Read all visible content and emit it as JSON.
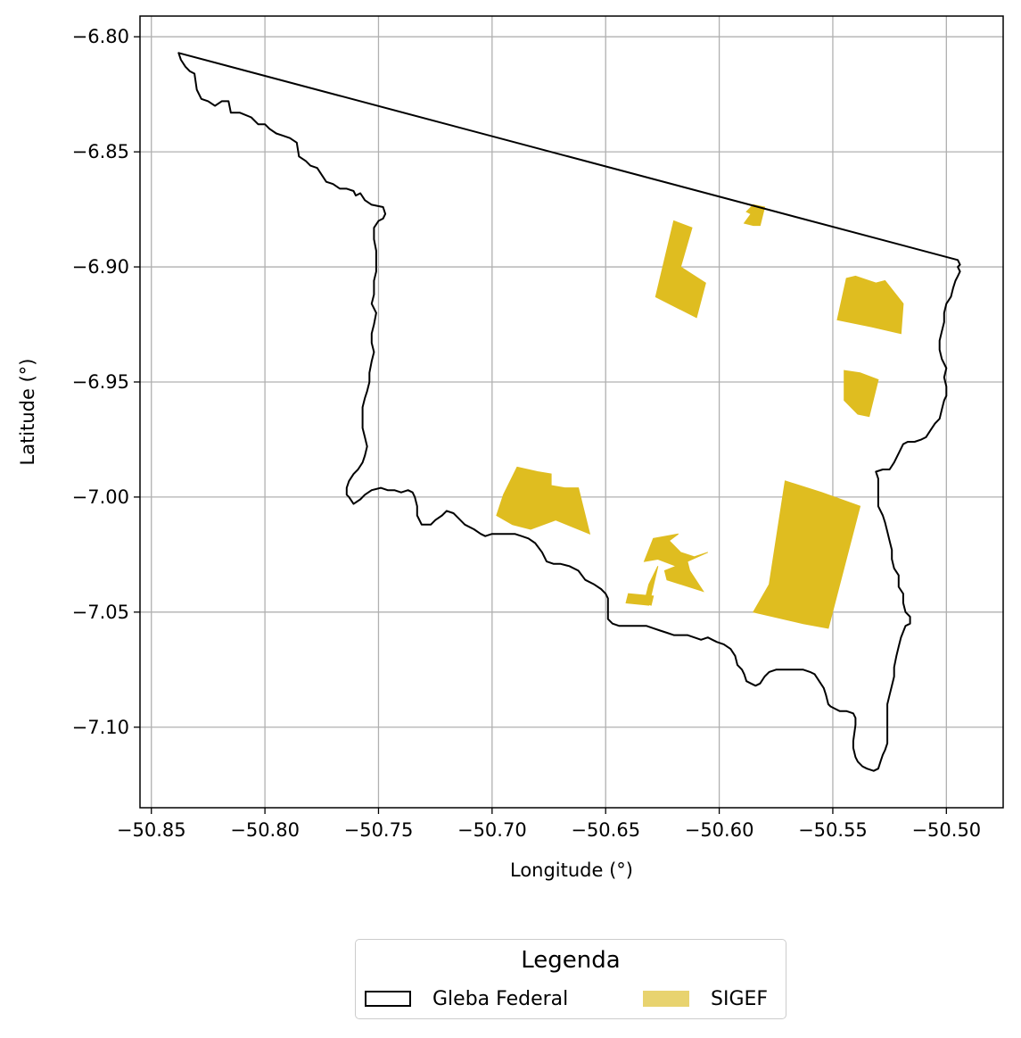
{
  "chart_data": {
    "type": "map",
    "xlabel": "Longitude (°)",
    "ylabel": "Latitude (°)",
    "xlim": [
      -50.855,
      -50.475
    ],
    "ylim": [
      -7.135,
      -6.791
    ],
    "x_ticks": [
      -50.85,
      -50.8,
      -50.75,
      -50.7,
      -50.65,
      -50.6,
      -50.55,
      -50.5
    ],
    "x_tick_labels": [
      "−50.85",
      "−50.80",
      "−50.75",
      "−50.70",
      "−50.65",
      "−50.60",
      "−50.55",
      "−50.50"
    ],
    "y_ticks": [
      -6.8,
      -6.85,
      -6.9,
      -6.95,
      -7.0,
      -7.05,
      -7.1
    ],
    "y_tick_labels": [
      "−6.80",
      "−6.85",
      "−6.90",
      "−6.95",
      "−7.00",
      "−7.05",
      "−7.10"
    ],
    "grid": true,
    "legend": {
      "title": "Legenda",
      "placement": "below",
      "entries": [
        {
          "label": "Gleba Federal",
          "style": "outline",
          "color": "#000000"
        },
        {
          "label": "SIGEF",
          "style": "fill",
          "color": "#e8d36f"
        }
      ]
    },
    "sigef_color": "#dfbd20",
    "gleba_outline": [
      [
        -50.838,
        -6.807
      ],
      [
        -50.837,
        -6.81
      ],
      [
        -50.835,
        -6.813
      ],
      [
        -50.833,
        -6.815
      ],
      [
        -50.831,
        -6.816
      ],
      [
        -50.83,
        -6.823
      ],
      [
        -50.828,
        -6.827
      ],
      [
        -50.825,
        -6.828
      ],
      [
        -50.822,
        -6.83
      ],
      [
        -50.819,
        -6.828
      ],
      [
        -50.816,
        -6.828
      ],
      [
        -50.815,
        -6.833
      ],
      [
        -50.811,
        -6.833
      ],
      [
        -50.806,
        -6.835
      ],
      [
        -50.803,
        -6.838
      ],
      [
        -50.8,
        -6.838
      ],
      [
        -50.798,
        -6.84
      ],
      [
        -50.795,
        -6.842
      ],
      [
        -50.792,
        -6.843
      ],
      [
        -50.789,
        -6.844
      ],
      [
        -50.786,
        -6.846
      ],
      [
        -50.785,
        -6.852
      ],
      [
        -50.782,
        -6.854
      ],
      [
        -50.78,
        -6.856
      ],
      [
        -50.777,
        -6.857
      ],
      [
        -50.775,
        -6.86
      ],
      [
        -50.773,
        -6.863
      ],
      [
        -50.77,
        -6.864
      ],
      [
        -50.767,
        -6.866
      ],
      [
        -50.764,
        -6.866
      ],
      [
        -50.761,
        -6.867
      ],
      [
        -50.76,
        -6.869
      ],
      [
        -50.758,
        -6.868
      ],
      [
        -50.756,
        -6.871
      ],
      [
        -50.753,
        -6.873
      ],
      [
        -50.748,
        -6.874
      ],
      [
        -50.747,
        -6.877
      ],
      [
        -50.748,
        -6.879
      ],
      [
        -50.75,
        -6.88
      ],
      [
        -50.752,
        -6.883
      ],
      [
        -50.752,
        -6.888
      ],
      [
        -50.751,
        -6.893
      ],
      [
        -50.751,
        -6.897
      ],
      [
        -50.751,
        -6.902
      ],
      [
        -50.752,
        -6.906
      ],
      [
        -50.752,
        -6.912
      ],
      [
        -50.753,
        -6.916
      ],
      [
        -50.751,
        -6.92
      ],
      [
        -50.752,
        -6.925
      ],
      [
        -50.753,
        -6.929
      ],
      [
        -50.753,
        -6.933
      ],
      [
        -50.752,
        -6.937
      ],
      [
        -50.753,
        -6.941
      ],
      [
        -50.754,
        -6.946
      ],
      [
        -50.754,
        -6.95
      ],
      [
        -50.755,
        -6.954
      ],
      [
        -50.756,
        -6.957
      ],
      [
        -50.757,
        -6.961
      ],
      [
        -50.757,
        -6.966
      ],
      [
        -50.757,
        -6.97
      ],
      [
        -50.756,
        -6.974
      ],
      [
        -50.755,
        -6.978
      ],
      [
        -50.756,
        -6.982
      ],
      [
        -50.757,
        -6.985
      ],
      [
        -50.759,
        -6.988
      ],
      [
        -50.761,
        -6.99
      ],
      [
        -50.763,
        -6.993
      ],
      [
        -50.764,
        -6.996
      ],
      [
        -50.764,
        -6.999
      ],
      [
        -50.763,
        -7.0
      ],
      [
        -50.761,
        -7.003
      ],
      [
        -50.758,
        -7.001
      ],
      [
        -50.756,
        -6.999
      ],
      [
        -50.753,
        -6.997
      ],
      [
        -50.749,
        -6.996
      ],
      [
        -50.746,
        -6.997
      ],
      [
        -50.743,
        -6.997
      ],
      [
        -50.74,
        -6.998
      ],
      [
        -50.737,
        -6.997
      ],
      [
        -50.735,
        -6.998
      ],
      [
        -50.734,
        -7.0
      ],
      [
        -50.733,
        -7.004
      ],
      [
        -50.733,
        -7.008
      ],
      [
        -50.731,
        -7.012
      ],
      [
        -50.727,
        -7.012
      ],
      [
        -50.725,
        -7.01
      ],
      [
        -50.722,
        -7.008
      ],
      [
        -50.72,
        -7.006
      ],
      [
        -50.717,
        -7.007
      ],
      [
        -50.715,
        -7.009
      ],
      [
        -50.712,
        -7.012
      ],
      [
        -50.708,
        -7.014
      ],
      [
        -50.705,
        -7.016
      ],
      [
        -50.703,
        -7.017
      ],
      [
        -50.7,
        -7.016
      ],
      [
        -50.697,
        -7.016
      ],
      [
        -50.694,
        -7.016
      ],
      [
        -50.69,
        -7.016
      ],
      [
        -50.687,
        -7.017
      ],
      [
        -50.684,
        -7.018
      ],
      [
        -50.681,
        -7.02
      ],
      [
        -50.678,
        -7.024
      ],
      [
        -50.676,
        -7.028
      ],
      [
        -50.673,
        -7.029
      ],
      [
        -50.67,
        -7.029
      ],
      [
        -50.666,
        -7.03
      ],
      [
        -50.662,
        -7.032
      ],
      [
        -50.659,
        -7.036
      ],
      [
        -50.655,
        -7.038
      ],
      [
        -50.652,
        -7.04
      ],
      [
        -50.65,
        -7.042
      ],
      [
        -50.649,
        -7.044
      ],
      [
        -50.649,
        -7.05
      ],
      [
        -50.649,
        -7.053
      ],
      [
        -50.647,
        -7.055
      ],
      [
        -50.644,
        -7.056
      ],
      [
        -50.641,
        -7.056
      ],
      [
        -50.638,
        -7.056
      ],
      [
        -50.635,
        -7.056
      ],
      [
        -50.632,
        -7.056
      ],
      [
        -50.629,
        -7.057
      ],
      [
        -50.626,
        -7.058
      ],
      [
        -50.623,
        -7.059
      ],
      [
        -50.62,
        -7.06
      ],
      [
        -50.617,
        -7.06
      ],
      [
        -50.614,
        -7.06
      ],
      [
        -50.611,
        -7.061
      ],
      [
        -50.608,
        -7.062
      ],
      [
        -50.605,
        -7.061
      ],
      [
        -50.603,
        -7.062
      ],
      [
        -50.601,
        -7.063
      ],
      [
        -50.598,
        -7.064
      ],
      [
        -50.595,
        -7.066
      ],
      [
        -50.593,
        -7.069
      ],
      [
        -50.592,
        -7.073
      ],
      [
        -50.59,
        -7.075
      ],
      [
        -50.589,
        -7.077
      ],
      [
        -50.588,
        -7.08
      ],
      [
        -50.586,
        -7.081
      ],
      [
        -50.584,
        -7.082
      ],
      [
        -50.582,
        -7.081
      ],
      [
        -50.58,
        -7.078
      ],
      [
        -50.578,
        -7.076
      ],
      [
        -50.575,
        -7.075
      ],
      [
        -50.572,
        -7.075
      ],
      [
        -50.569,
        -7.075
      ],
      [
        -50.566,
        -7.075
      ],
      [
        -50.563,
        -7.075
      ],
      [
        -50.56,
        -7.076
      ],
      [
        -50.558,
        -7.077
      ],
      [
        -50.556,
        -7.08
      ],
      [
        -50.554,
        -7.083
      ],
      [
        -50.553,
        -7.086
      ],
      [
        -50.552,
        -7.09
      ],
      [
        -50.551,
        -7.091
      ],
      [
        -50.549,
        -7.092
      ],
      [
        -50.547,
        -7.093
      ],
      [
        -50.544,
        -7.093
      ],
      [
        -50.541,
        -7.094
      ],
      [
        -50.54,
        -7.096
      ],
      [
        -50.54,
        -7.099
      ],
      [
        -50.541,
        -7.106
      ],
      [
        -50.541,
        -7.109
      ],
      [
        -50.54,
        -7.113
      ],
      [
        -50.539,
        -7.115
      ],
      [
        -50.537,
        -7.117
      ],
      [
        -50.535,
        -7.118
      ],
      [
        -50.532,
        -7.119
      ],
      [
        -50.53,
        -7.118
      ],
      [
        -50.529,
        -7.115
      ],
      [
        -50.528,
        -7.112
      ],
      [
        -50.527,
        -7.11
      ],
      [
        -50.526,
        -7.107
      ],
      [
        -50.526,
        -7.103
      ],
      [
        -50.526,
        -7.099
      ],
      [
        -50.526,
        -7.095
      ],
      [
        -50.526,
        -7.09
      ],
      [
        -50.525,
        -7.086
      ],
      [
        -50.524,
        -7.082
      ],
      [
        -50.523,
        -7.078
      ],
      [
        -50.523,
        -7.074
      ],
      [
        -50.522,
        -7.069
      ],
      [
        -50.521,
        -7.065
      ],
      [
        -50.52,
        -7.061
      ],
      [
        -50.518,
        -7.056
      ],
      [
        -50.516,
        -7.055
      ],
      [
        -50.516,
        -7.052
      ],
      [
        -50.518,
        -7.05
      ],
      [
        -50.519,
        -7.046
      ],
      [
        -50.519,
        -7.042
      ],
      [
        -50.521,
        -7.039
      ],
      [
        -50.521,
        -7.034
      ],
      [
        -50.523,
        -7.031
      ],
      [
        -50.524,
        -7.027
      ],
      [
        -50.524,
        -7.023
      ],
      [
        -50.525,
        -7.019
      ],
      [
        -50.526,
        -7.015
      ],
      [
        -50.527,
        -7.011
      ],
      [
        -50.528,
        -7.008
      ],
      [
        -50.53,
        -7.004
      ],
      [
        -50.53,
        -7.0
      ],
      [
        -50.53,
        -6.996
      ],
      [
        -50.53,
        -6.992
      ],
      [
        -50.531,
        -6.989
      ],
      [
        -50.528,
        -6.988
      ],
      [
        -50.525,
        -6.988
      ],
      [
        -50.523,
        -6.985
      ],
      [
        -50.521,
        -6.981
      ],
      [
        -50.519,
        -6.977
      ],
      [
        -50.517,
        -6.976
      ],
      [
        -50.514,
        -6.976
      ],
      [
        -50.511,
        -6.975
      ],
      [
        -50.509,
        -6.974
      ],
      [
        -50.507,
        -6.971
      ],
      [
        -50.505,
        -6.968
      ],
      [
        -50.503,
        -6.966
      ],
      [
        -50.502,
        -6.962
      ],
      [
        -50.501,
        -6.958
      ],
      [
        -50.5,
        -6.956
      ],
      [
        -50.5,
        -6.952
      ],
      [
        -50.501,
        -6.948
      ],
      [
        -50.5,
        -6.944
      ],
      [
        -50.502,
        -6.94
      ],
      [
        -50.503,
        -6.936
      ],
      [
        -50.503,
        -6.932
      ],
      [
        -50.502,
        -6.928
      ],
      [
        -50.501,
        -6.924
      ],
      [
        -50.501,
        -6.92
      ],
      [
        -50.5,
        -6.916
      ],
      [
        -50.498,
        -6.913
      ],
      [
        -50.497,
        -6.909
      ],
      [
        -50.496,
        -6.906
      ],
      [
        -50.495,
        -6.904
      ],
      [
        -50.494,
        -6.902
      ],
      [
        -50.495,
        -6.9
      ],
      [
        -50.494,
        -6.899
      ],
      [
        -50.495,
        -6.897
      ],
      [
        -50.838,
        -6.807
      ]
    ],
    "sigef_parcels": [
      [
        [
          -50.588,
          -6.876
        ],
        [
          -50.585,
          -6.873
        ],
        [
          -50.58,
          -6.874
        ],
        [
          -50.582,
          -6.882
        ],
        [
          -50.585,
          -6.882
        ],
        [
          -50.589,
          -6.881
        ],
        [
          -50.586,
          -6.877
        ]
      ],
      [
        [
          -50.62,
          -6.88
        ],
        [
          -50.612,
          -6.883
        ],
        [
          -50.617,
          -6.9
        ],
        [
          -50.606,
          -6.907
        ],
        [
          -50.61,
          -6.922
        ],
        [
          -50.628,
          -6.913
        ]
      ],
      [
        [
          -50.544,
          -6.905
        ],
        [
          -50.54,
          -6.904
        ],
        [
          -50.531,
          -6.907
        ],
        [
          -50.527,
          -6.906
        ],
        [
          -50.519,
          -6.916
        ],
        [
          -50.52,
          -6.929
        ],
        [
          -50.533,
          -6.926
        ],
        [
          -50.548,
          -6.923
        ]
      ],
      [
        [
          -50.545,
          -6.945
        ],
        [
          -50.538,
          -6.946
        ],
        [
          -50.53,
          -6.949
        ],
        [
          -50.534,
          -6.965
        ],
        [
          -50.539,
          -6.964
        ],
        [
          -50.545,
          -6.958
        ]
      ],
      [
        [
          -50.689,
          -6.987
        ],
        [
          -50.68,
          -6.989
        ],
        [
          -50.674,
          -6.99
        ],
        [
          -50.674,
          -6.995
        ],
        [
          -50.668,
          -6.996
        ],
        [
          -50.662,
          -6.996
        ],
        [
          -50.657,
          -7.016
        ],
        [
          -50.672,
          -7.01
        ],
        [
          -50.683,
          -7.014
        ],
        [
          -50.691,
          -7.012
        ],
        [
          -50.698,
          -7.008
        ],
        [
          -50.695,
          -6.999
        ]
      ],
      [
        [
          -50.571,
          -6.993
        ],
        [
          -50.555,
          -6.998
        ],
        [
          -50.538,
          -7.004
        ],
        [
          -50.552,
          -7.057
        ],
        [
          -50.563,
          -7.055
        ],
        [
          -50.585,
          -7.05
        ],
        [
          -50.578,
          -7.038
        ]
      ],
      [
        [
          -50.618,
          -7.016
        ],
        [
          -50.622,
          -7.019
        ],
        [
          -50.617,
          -7.024
        ],
        [
          -50.611,
          -7.026
        ],
        [
          -50.605,
          -7.024
        ],
        [
          -50.614,
          -7.028
        ],
        [
          -50.613,
          -7.032
        ],
        [
          -50.607,
          -7.041
        ],
        [
          -50.623,
          -7.036
        ],
        [
          -50.624,
          -7.032
        ],
        [
          -50.619,
          -7.03
        ],
        [
          -50.627,
          -7.027
        ],
        [
          -50.633,
          -7.028
        ],
        [
          -50.629,
          -7.018
        ]
      ],
      [
        [
          -50.627,
          -7.03
        ],
        [
          -50.631,
          -7.038
        ],
        [
          -50.633,
          -7.046
        ],
        [
          -50.63,
          -7.047
        ],
        [
          -50.629,
          -7.043
        ],
        [
          -50.64,
          -7.042
        ],
        [
          -50.641,
          -7.046
        ],
        [
          -50.631,
          -7.047
        ]
      ]
    ]
  }
}
